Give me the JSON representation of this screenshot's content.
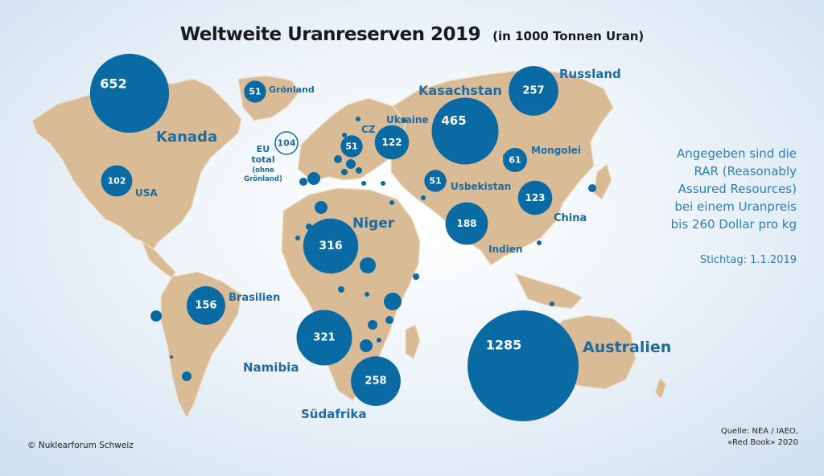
{
  "title": "Weltweite Uranreserven 2019",
  "title_unit": "(in 1000 Tonnen Uran)",
  "note_lines": [
    "Angegeben sind die",
    "RAR (Reasonably",
    "Assured Resources)",
    "bei einem Uranpreis",
    "bis 260 Dollar pro kg"
  ],
  "stichtag": "Stichtag: 1.1.2019",
  "source_lines": [
    "Quelle: NEA / IAEO,",
    "«Red Book» 2020"
  ],
  "copyright": "© Nuklearforum Schweiz",
  "colors": {
    "bubble": "#0a6aa3",
    "land": "#d9bc96",
    "label": "#1f6aa0"
  },
  "eu": {
    "value": "104",
    "label_lines": [
      "EU",
      "total",
      "(ohne",
      "Grönland)"
    ]
  },
  "countries": [
    {
      "name": "Kanada",
      "value": 652,
      "value_text": "652"
    },
    {
      "name": "Grönland",
      "value": 51,
      "value_text": "51"
    },
    {
      "name": "USA",
      "value": 102,
      "value_text": "102"
    },
    {
      "name": "Brasilien",
      "value": 156,
      "value_text": "156"
    },
    {
      "name": "Niger",
      "value": 316,
      "value_text": "316"
    },
    {
      "name": "Namibia",
      "value": 321,
      "value_text": "321"
    },
    {
      "name": "Südafrika",
      "value": 258,
      "value_text": "258"
    },
    {
      "name": "CZ",
      "value": 51,
      "value_text": "51"
    },
    {
      "name": "Ukraine",
      "value": 122,
      "value_text": "122"
    },
    {
      "name": "Kasachstan",
      "value": 465,
      "value_text": "465"
    },
    {
      "name": "Russland",
      "value": 257,
      "value_text": "257"
    },
    {
      "name": "Usbekistan",
      "value": 51,
      "value_text": "51"
    },
    {
      "name": "Mongolei",
      "value": 61,
      "value_text": "61"
    },
    {
      "name": "China",
      "value": 123,
      "value_text": "123"
    },
    {
      "name": "Indien",
      "value": 188,
      "value_text": "188"
    },
    {
      "name": "Australien",
      "value": 1285,
      "value_text": "1285"
    }
  ]
}
